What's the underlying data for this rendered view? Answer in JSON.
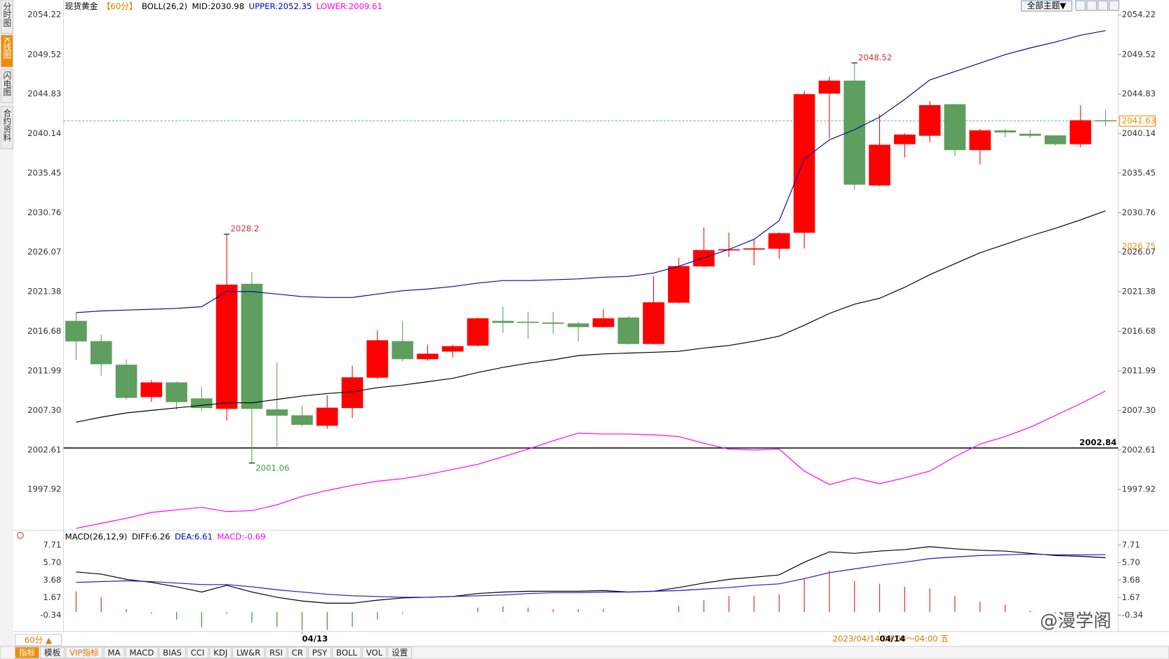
{
  "chart_data": [
    {
      "type": "candlestick",
      "header": [
        {
          "text": "现货黄金",
          "color": "#000000"
        },
        {
          "text": "【60分】",
          "color": "#e07800"
        },
        {
          "text": "BOLL(26,2)",
          "color": "#000000"
        },
        {
          "text": "MID:2030.98",
          "color": "#000000"
        },
        {
          "text": "UPPER:2052.35",
          "color": "#0000cc"
        },
        {
          "text": "LOWER:2009.61",
          "color": "#ff00ff"
        }
      ],
      "categories": [
        null,
        null,
        null,
        null,
        null,
        null,
        null,
        null,
        null,
        "04/13",
        null,
        null,
        null,
        null,
        null,
        null,
        null,
        null,
        null,
        null,
        null,
        null,
        null,
        null,
        null,
        null,
        null,
        null,
        null,
        null,
        null,
        null,
        "04/14",
        null,
        null,
        null,
        null,
        null,
        null,
        null,
        null,
        null
      ],
      "open": [
        2017.9,
        2015.5,
        2012.7,
        2008.9,
        2010.6,
        2008.7,
        2007.5,
        2022.3,
        2007.4,
        2006.7,
        2005.5,
        2007.6,
        2011.2,
        2015.5,
        2013.4,
        2014.3,
        2015.0,
        2017.9,
        2017.8,
        2017.7,
        2017.6,
        2017.2,
        2018.3,
        2015.2,
        2020.1,
        2024.4,
        2026.3,
        2026.4,
        2026.5,
        2028.4,
        2044.9,
        2046.4,
        2034.0,
        2038.9,
        2039.9,
        2043.6,
        2038.2,
        2040.5,
        2040.1,
        2039.9,
        2038.9,
        2041.7
      ],
      "high": [
        2018.9,
        2016.3,
        2013.4,
        2010.9,
        2010.7,
        2010.1,
        2028.2,
        2023.7,
        2013.0,
        2007.9,
        2009.1,
        2012.6,
        2016.8,
        2017.9,
        2015.1,
        2015.1,
        2018.3,
        2019.6,
        2019.0,
        2019.0,
        2017.8,
        2019.3,
        2018.5,
        2023.2,
        2025.4,
        2029.0,
        2028.4,
        2027.6,
        2028.4,
        2045.2,
        2046.9,
        2048.52,
        2042.4,
        2040.2,
        2044.0,
        2043.7,
        2040.7,
        2040.7,
        2040.6,
        2039.9,
        2043.5,
        2043.0
      ],
      "low": [
        2013.3,
        2011.4,
        2008.6,
        2008.3,
        2007.4,
        2007.2,
        2006.1,
        2001.06,
        2003.0,
        2005.4,
        2005.1,
        2006.4,
        2011.0,
        2013.1,
        2013.2,
        2013.6,
        2014.9,
        2016.5,
        2015.8,
        2016.4,
        2015.5,
        2017.1,
        2015.1,
        2015.1,
        2020.0,
        2024.3,
        2025.5,
        2024.5,
        2025.3,
        2026.5,
        2039.6,
        2033.5,
        2033.9,
        2037.3,
        2039.1,
        2037.5,
        2036.5,
        2039.7,
        2039.6,
        2038.7,
        2038.5,
        2041.0
      ],
      "close": [
        2015.5,
        2012.8,
        2008.8,
        2010.6,
        2008.3,
        2007.6,
        2022.2,
        2007.5,
        2006.7,
        2005.6,
        2007.6,
        2011.2,
        2015.6,
        2013.4,
        2014.0,
        2014.9,
        2018.2,
        2017.7,
        2017.7,
        2017.6,
        2017.2,
        2018.2,
        2015.2,
        2020.1,
        2024.4,
        2026.3,
        2026.4,
        2026.5,
        2028.3,
        2044.8,
        2046.4,
        2034.1,
        2038.8,
        2040.0,
        2043.5,
        2038.2,
        2040.5,
        2040.3,
        2039.9,
        2038.9,
        2041.7,
        2041.63
      ],
      "up_color": "#ff0000",
      "down_color": "#5e9e5e",
      "overlays": [
        {
          "color": "#000000",
          "values": [
            2005.9,
            2006.5,
            2007.0,
            2007.3,
            2007.6,
            2007.9,
            2008.2,
            2008.2,
            2008.6,
            2009.0,
            2009.3,
            2009.5,
            2010.0,
            2010.3,
            2010.7,
            2011.1,
            2011.8,
            2012.4,
            2012.9,
            2013.3,
            2013.8,
            2014.0,
            2014.1,
            2014.2,
            2014.3,
            2014.7,
            2015.0,
            2015.5,
            2016.1,
            2017.4,
            2018.8,
            2019.9,
            2020.6,
            2021.9,
            2023.4,
            2024.7,
            2026.0,
            2027.0,
            2028.0,
            2028.9,
            2029.9,
            2030.98
          ]
        },
        {
          "color": "#0a0a9a",
          "values": [
            2018.9,
            2019.1,
            2019.2,
            2019.3,
            2019.4,
            2019.6,
            2021.4,
            2021.4,
            2021.1,
            2020.8,
            2020.7,
            2020.7,
            2021.1,
            2021.5,
            2021.7,
            2022.0,
            2022.4,
            2022.7,
            2022.7,
            2022.8,
            2022.9,
            2023.1,
            2023.2,
            2023.6,
            2024.4,
            2025.4,
            2026.4,
            2027.6,
            2029.8,
            2037.1,
            2039.4,
            2040.6,
            2042.1,
            2044.2,
            2046.5,
            2047.5,
            2048.5,
            2049.5,
            2050.3,
            2051.0,
            2051.8,
            2052.35
          ]
        },
        {
          "color": "#ff00ff",
          "values": [
            1993.3,
            1993.9,
            1994.5,
            1995.2,
            1995.5,
            1995.8,
            1995.3,
            1995.4,
            1996.1,
            1997.1,
            1997.8,
            1998.4,
            1998.9,
            1999.2,
            1999.7,
            2000.3,
            2000.9,
            2001.8,
            2002.7,
            2003.7,
            2004.6,
            2004.5,
            2004.5,
            2004.4,
            2004.2,
            2003.4,
            2002.7,
            2002.6,
            2002.7,
            2000.1,
            1998.5,
            1999.3,
            1998.6,
            1999.3,
            2000.1,
            2001.8,
            2003.3,
            2004.2,
            2005.3,
            2006.7,
            2008.1,
            2009.61
          ]
        }
      ],
      "ylim": [
        1993.09,
        2055.81
      ],
      "yticks": [
        2054.22,
        2049.52,
        2044.83,
        2040.14,
        2035.45,
        2030.76,
        2026.07,
        2021.38,
        2016.68,
        2011.99,
        {
          "value": 2007.3,
          "label": "2007.30"
        },
        2002.61,
        1997.92
      ],
      "ref_lines": [
        {
          "value": 2002.84,
          "color": "#000000",
          "style": "solid"
        },
        {
          "value": 2041.63,
          "color": "#3a86c8",
          "style": "dashed"
        }
      ],
      "right_markers": [
        {
          "value": 2041.63,
          "style": "box",
          "color": "#f08c00"
        },
        {
          "value": 2026.75,
          "style": "text",
          "color": "#f08c00"
        }
      ]
    },
    {
      "type": "macd",
      "header": [
        {
          "text": "MACD(26,12,9)",
          "color": "#000000"
        },
        {
          "text": "DIFF:6.26",
          "color": "#000000"
        },
        {
          "text": "DEA:6.61",
          "color": "#0000cc"
        },
        {
          "text": "MACD:-0.69",
          "color": "#ff00ff"
        }
      ],
      "series": [
        {
          "color": "#000000",
          "values": [
            4.62,
            4.37,
            3.77,
            3.42,
            2.91,
            2.31,
            3.08,
            2.31,
            1.71,
            1.28,
            1.03,
            1.03,
            1.37,
            1.63,
            1.71,
            1.8,
            2.14,
            2.31,
            2.4,
            2.4,
            2.4,
            2.48,
            2.31,
            2.4,
            2.83,
            3.34,
            3.77,
            4.02,
            4.28,
            5.74,
            6.93,
            6.76,
            7.02,
            7.19,
            7.53,
            7.28,
            7.11,
            7.02,
            6.76,
            6.51,
            6.42,
            6.26
          ]
        },
        {
          "color": "#1a1acc",
          "values": [
            3.42,
            3.51,
            3.6,
            3.51,
            3.34,
            3.17,
            3.17,
            2.91,
            2.57,
            2.31,
            2.05,
            1.88,
            1.8,
            1.71,
            1.71,
            1.8,
            1.88,
            1.97,
            2.14,
            2.23,
            2.23,
            2.31,
            2.31,
            2.4,
            2.48,
            2.65,
            2.83,
            3.08,
            3.25,
            3.85,
            4.54,
            4.97,
            5.39,
            5.74,
            6.16,
            6.34,
            6.51,
            6.59,
            6.68,
            6.59,
            6.59,
            6.61
          ]
        }
      ],
      "histogram": {
        "up_color": "#e53935",
        "down_color": "#3c9a3c",
        "values": [
          2.4,
          1.72,
          0.34,
          -0.18,
          -0.86,
          -1.72,
          -0.18,
          -1.2,
          -1.72,
          -2.06,
          -2.04,
          -1.7,
          -0.86,
          -0.16,
          0,
          0,
          0.52,
          0.68,
          0.52,
          0.34,
          0.34,
          0.34,
          0,
          0,
          0.7,
          1.38,
          1.88,
          1.88,
          2.06,
          3.78,
          4.78,
          3.58,
          3.26,
          2.9,
          2.74,
          1.88,
          1.2,
          0.86,
          0.16,
          -0.16,
          -0.34,
          -0.69
        ]
      },
      "ylim": [
        -1.11,
        8.14
      ],
      "yticks": [
        7.71,
        {
          "value": 5.7,
          "label": "5.70"
        },
        3.68,
        1.67,
        -0.34
      ]
    }
  ],
  "ui": {
    "side_tabs": [
      "分时图",
      "K线图",
      "闪电图",
      "合约资料"
    ],
    "theme_button": "全部主题▼",
    "period_button": "60分 ▲",
    "status": "2023/04/14 03:00～04:00 五",
    "toolbar": [
      "指标",
      "模板",
      "VIP指标",
      "MA",
      "MACD",
      "BIAS",
      "CCI",
      "KDJ",
      "LW&R",
      "RSI",
      "CR",
      "PSY",
      "BOLL",
      "VOL",
      "设置"
    ],
    "watermark": "@漫学阁"
  }
}
